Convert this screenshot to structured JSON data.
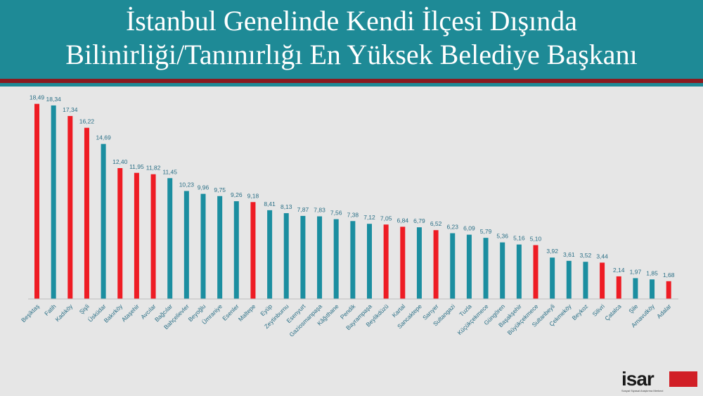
{
  "header": {
    "title_line1": "İstanbul Genelinde Kendi İlçesi Dışında",
    "title_line2": "Bilinirliği/Tanınırlığı En Yüksek Belediye Başkanı"
  },
  "logo": {
    "text": "isar",
    "subtitle": "Sosyal Siyasal Araştırma Merkezi"
  },
  "colors": {
    "background": "#e6e6e6",
    "header": "#1e8a96",
    "stripe": "#8b1a1f",
    "teal_bar": "#1b8ea0",
    "red_bar": "#ee1c24",
    "label": "#2a6f86"
  },
  "chart_data": {
    "type": "bar",
    "title": "",
    "xlabel": "",
    "ylabel": "",
    "ylim": [
      0,
      19
    ],
    "grid": false,
    "categories": [
      "Beşiktaş",
      "Fatih",
      "Kadıköy",
      "Şişli",
      "Üsküdar",
      "Bakırköy",
      "Ataşehir",
      "Avcılar",
      "Bağcılar",
      "Bahçelievler",
      "Beyoğlu",
      "Ümraniye",
      "Esenler",
      "Maltepe",
      "Eyüp",
      "Zeytinburnu",
      "Esenyurt",
      "Gaziosmanpaşa",
      "Kâğıthane",
      "Pendik",
      "Bayrampaşa",
      "Beylikdüzü",
      "Kartal",
      "Sancaktepe",
      "Sarıyer",
      "Sultangazi",
      "Tuzla",
      "Küçükçekmece",
      "Güngören",
      "Başakşehir",
      "Büyükçekmece",
      "Sultanbeyli",
      "Çekmeköy",
      "Beykoz",
      "Silivri",
      "Çatalca",
      "Şile",
      "Arnavutköy",
      "Adalar"
    ],
    "values": [
      18.49,
      18.34,
      17.34,
      16.22,
      14.69,
      12.4,
      11.95,
      11.82,
      11.45,
      10.23,
      9.96,
      9.75,
      9.26,
      9.18,
      8.41,
      8.13,
      7.87,
      7.83,
      7.56,
      7.38,
      7.12,
      7.05,
      6.84,
      6.79,
      6.52,
      6.23,
      6.09,
      5.79,
      5.36,
      5.16,
      5.1,
      3.92,
      3.61,
      3.52,
      3.44,
      2.14,
      1.97,
      1.85,
      1.68
    ],
    "value_labels": [
      "18,49",
      "18,34",
      "17,34",
      "16,22",
      "14,69",
      "12,40",
      "11,95",
      "11,82",
      "11,45",
      "10,23",
      "9,96",
      "9,75",
      "9,26",
      "9,18",
      "8,41",
      "8,13",
      "7,87",
      "7,83",
      "7,56",
      "7,38",
      "7,12",
      "7,05",
      "6,84",
      "6,79",
      "6,52",
      "6,23",
      "6,09",
      "5,79",
      "5,36",
      "5,16",
      "5,10",
      "3,92",
      "3,61",
      "3,52",
      "3,44",
      "2,14",
      "1,97",
      "1,85",
      "1,68"
    ],
    "bar_colors": [
      "red",
      "teal",
      "red",
      "red",
      "teal",
      "red",
      "red",
      "red",
      "teal",
      "teal",
      "teal",
      "teal",
      "teal",
      "red",
      "teal",
      "teal",
      "teal",
      "teal",
      "teal",
      "teal",
      "teal",
      "red",
      "red",
      "teal",
      "red",
      "teal",
      "teal",
      "teal",
      "teal",
      "teal",
      "red",
      "teal",
      "teal",
      "teal",
      "red",
      "red",
      "teal",
      "teal",
      "red"
    ]
  }
}
